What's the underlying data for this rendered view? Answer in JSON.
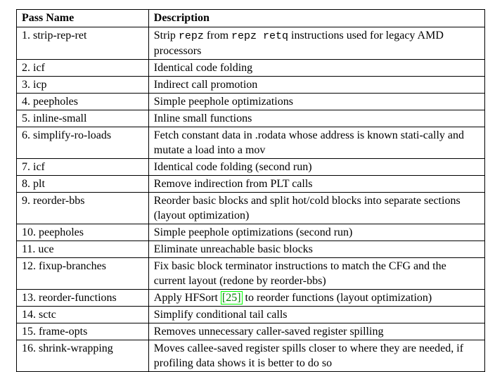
{
  "table": {
    "headers": {
      "name": "Pass Name",
      "description": "Description"
    },
    "rows": [
      {
        "name": "1. strip-rep-ret",
        "desc": {
          "t1": "Strip ",
          "c1": "repz",
          "t2": " from ",
          "c2": "repz retq",
          "t3": " instructions used for legacy AMD processors"
        }
      },
      {
        "name": "2. icf",
        "desc": "Identical code folding"
      },
      {
        "name": "3. icp",
        "desc": "Indirect call promotion"
      },
      {
        "name": "4. peepholes",
        "desc": "Simple peephole optimizations"
      },
      {
        "name": "5. inline-small",
        "desc": "Inline small functions"
      },
      {
        "name": "6. simplify-ro-loads",
        "desc": "Fetch constant data in .rodata whose address is known stati-cally and mutate a load into a mov"
      },
      {
        "name": "7. icf",
        "desc": "Identical code folding (second run)"
      },
      {
        "name": "8. plt",
        "desc": "Remove indirection from PLT calls"
      },
      {
        "name": "9. reorder-bbs",
        "desc": "Reorder basic blocks and split hot/cold blocks into separate sections (layout optimization)"
      },
      {
        "name": "10. peepholes",
        "desc": "Simple peephole optimizations (second run)"
      },
      {
        "name": "11. uce",
        "desc": "Eliminate unreachable basic blocks"
      },
      {
        "name": "12. fixup-branches",
        "desc": "Fix basic block terminator instructions to match the CFG and the current layout (redone by reorder-bbs)"
      },
      {
        "name": "13. reorder-functions",
        "desc": {
          "t1": "Apply HFSort ",
          "cite": "[25]",
          "t2": " to reorder functions (layout optimization)"
        }
      },
      {
        "name": "14. sctc",
        "desc": "Simplify conditional tail calls"
      },
      {
        "name": "15. frame-opts",
        "desc": "Removes unnecessary caller-saved register spilling"
      },
      {
        "name": "16. shrink-wrapping",
        "desc": "Moves callee-saved register spills closer to where they are needed, if profiling data shows it is better to do so"
      }
    ]
  }
}
